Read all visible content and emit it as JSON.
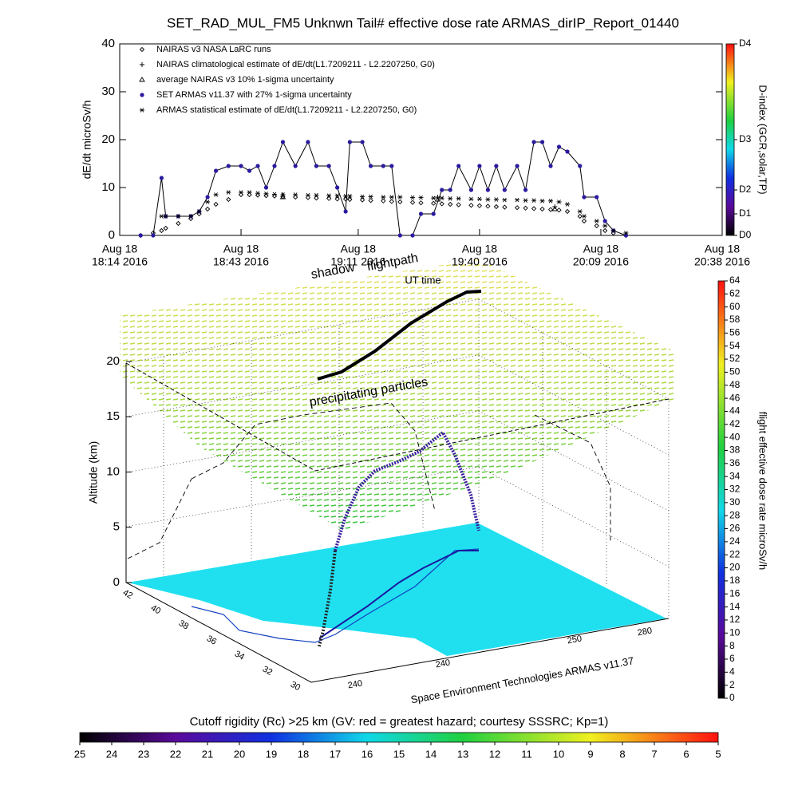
{
  "chart_data": [
    {
      "type": "line",
      "title": "SET_RAD_MUL_FM5 Unknwn Tail#  effective dose rate ARMAS_dirIP_Report_01440",
      "ylabel": "dE/dt microSv/h",
      "xlabel": "UT time",
      "x": [
        "2016-08-18 18:19",
        "2016-08-18 18:22",
        "2016-08-18 18:24",
        "2016-08-18 18:25",
        "2016-08-18 18:28",
        "2016-08-18 18:31",
        "2016-08-18 18:33",
        "2016-08-18 18:35",
        "2016-08-18 18:37",
        "2016-08-18 18:40",
        "2016-08-18 18:43",
        "2016-08-18 18:45",
        "2016-08-18 18:47",
        "2016-08-18 18:49",
        "2016-08-18 18:51",
        "2016-08-18 18:53",
        "2016-08-18 18:56",
        "2016-08-18 18:59",
        "2016-08-18 19:01",
        "2016-08-18 19:04",
        "2016-08-18 19:06",
        "2016-08-18 19:08",
        "2016-08-18 19:09",
        "2016-08-18 19:12",
        "2016-08-18 19:14",
        "2016-08-18 19:17",
        "2016-08-18 19:19",
        "2016-08-18 19:21",
        "2016-08-18 19:24",
        "2016-08-18 19:26",
        "2016-08-18 19:29",
        "2016-08-18 19:31",
        "2016-08-18 19:33",
        "2016-08-18 19:35",
        "2016-08-18 19:38",
        "2016-08-18 19:40",
        "2016-08-18 19:42",
        "2016-08-18 19:44",
        "2016-08-18 19:46",
        "2016-08-18 19:49",
        "2016-08-18 19:51",
        "2016-08-18 19:53",
        "2016-08-18 19:55",
        "2016-08-18 19:57",
        "2016-08-18 19:59",
        "2016-08-18 20:01",
        "2016-08-18 20:04",
        "2016-08-18 20:05",
        "2016-08-18 20:08",
        "2016-08-18 20:10",
        "2016-08-18 20:12",
        "2016-08-18 20:15"
      ],
      "xlim": [
        "2016-08-18 18:14",
        "2016-08-18 20:38"
      ],
      "xticks": [
        {
          "value": "2016-08-18 18:14",
          "label": [
            "Aug 18",
            "18:14 2016"
          ]
        },
        {
          "value": "2016-08-18 18:43",
          "label": [
            "Aug 18",
            "18:43 2016"
          ]
        },
        {
          "value": "2016-08-18 19:11",
          "label": [
            "Aug 18",
            "19:11 2016"
          ]
        },
        {
          "value": "2016-08-18 19:40",
          "label": [
            "Aug 18",
            "19:40 2016"
          ]
        },
        {
          "value": "2016-08-18 20:09",
          "label": [
            "Aug 18",
            "20:09 2016"
          ]
        },
        {
          "value": "2016-08-18 20:38",
          "label": [
            "Aug 18",
            "20:38 2016"
          ]
        }
      ],
      "ylim": [
        0,
        40
      ],
      "yticks": [
        0,
        10,
        20,
        30,
        40
      ],
      "legend": "upper left",
      "series": [
        {
          "name": "NAIRAS v3 NASA LaRC runs",
          "marker": "diamond",
          "color": "#000000",
          "line": false,
          "values": [
            0,
            0.5,
            1,
            1.5,
            2.5,
            3.5,
            4.5,
            5.5,
            6.5,
            7.5,
            8.5,
            8.5,
            8.4,
            8.3,
            8.2,
            8.1,
            8,
            7.9,
            7.8,
            7.7,
            7.6,
            7.6,
            7.5,
            7.4,
            7.3,
            7.2,
            7.1,
            7,
            6.9,
            6.8,
            6.7,
            6.6,
            6.5,
            6.4,
            6.3,
            6.2,
            6.1,
            6,
            5.9,
            5.8,
            5.7,
            5.6,
            5.5,
            5.4,
            5.3,
            5,
            4,
            3,
            2,
            1,
            0.5,
            0
          ]
        },
        {
          "name": "NAIRAS climatological estimate of dE/dt(L1.7209211 - L2.2207250, G0)",
          "marker": "plus",
          "color": "#000000",
          "line": false,
          "x": [
            "2016-08-18 18:53",
            "2016-08-18 19:30",
            "2016-08-18 19:58"
          ],
          "values": [
            8.5,
            8,
            6
          ]
        },
        {
          "name": "average NAIRAS v3 10% 1-sigma uncertainty",
          "marker": "triangle",
          "color": "#000000",
          "line": false,
          "x": [
            "2016-08-18 18:53",
            "2016-08-18 19:30",
            "2016-08-18 19:58"
          ],
          "values": [
            8,
            7.5,
            5.5
          ]
        },
        {
          "name": "SET ARMAS v11.37 with 27% 1-sigma uncertainty",
          "marker": "circle",
          "color": "#2a1aa0",
          "line": true,
          "values": [
            0,
            0,
            12,
            4,
            4,
            4,
            5,
            8,
            13.5,
            14.5,
            14.5,
            13.5,
            14.5,
            10,
            14.5,
            19.5,
            14.5,
            19.5,
            14.5,
            14.5,
            10,
            5,
            19.5,
            19.5,
            14.5,
            14.5,
            14.5,
            0,
            0,
            4.5,
            4.5,
            9.5,
            9.5,
            14.5,
            9.5,
            14.5,
            9.5,
            14.5,
            9.5,
            14.5,
            9.5,
            19.5,
            19.5,
            14.5,
            18.5,
            17.5,
            14.5,
            8,
            8,
            3,
            1,
            0
          ]
        },
        {
          "name": "ARMAS statistical estimate of dE/dt(L1.7209211 - L2.2207250, G0)",
          "marker": "asterisk",
          "color": "#000000",
          "line": false,
          "values": [
            null,
            null,
            4,
            4,
            4,
            4,
            5,
            7,
            8.5,
            9,
            9,
            9,
            8.8,
            8.7,
            8.6,
            8.5,
            8.5,
            8.4,
            8.4,
            8.3,
            8.3,
            8.2,
            8.2,
            8.1,
            8.1,
            8,
            8,
            8,
            7.9,
            7.9,
            7.8,
            7.8,
            7.7,
            7.7,
            7.6,
            7.6,
            7.5,
            7.5,
            7.4,
            7.4,
            7.3,
            7.3,
            7.2,
            7.2,
            7,
            6.5,
            5,
            4,
            3,
            2,
            1,
            0.5
          ]
        }
      ]
    },
    {
      "type": "colorbar",
      "orientation": "vertical",
      "label": "D-index (GCR,solar,TP)",
      "lim": [
        0,
        40
      ],
      "ticks": [
        {
          "value": 0,
          "label": "D0"
        },
        {
          "value": 4.5,
          "label": "D1"
        },
        {
          "value": 9.5,
          "label": "D2"
        },
        {
          "value": 20,
          "label": "D3"
        },
        {
          "value": 40,
          "label": "D4"
        }
      ]
    },
    {
      "type": "3d-flightpath",
      "annotations": [
        "shadow",
        "flightpath",
        "precipitating particles"
      ],
      "zlabel": "Altitude (km)",
      "zlim": [
        0,
        20
      ],
      "zticks": [
        0,
        5,
        10,
        15,
        20
      ],
      "latticks": [
        42,
        40,
        38,
        36,
        34,
        32,
        30
      ],
      "lonticks": [
        240,
        240,
        250,
        280
      ],
      "credit": "Space Environment Technologies ARMAS v11.37"
    },
    {
      "type": "colorbar",
      "orientation": "vertical",
      "label": "flight effective dose rate microSv/h",
      "lim": [
        0,
        64
      ],
      "ticks": [
        0,
        2,
        4,
        6,
        8,
        10,
        12,
        14,
        16,
        18,
        20,
        22,
        24,
        26,
        28,
        30,
        32,
        34,
        36,
        38,
        40,
        42,
        44,
        46,
        48,
        50,
        52,
        54,
        56,
        58,
        60,
        62,
        64
      ]
    },
    {
      "type": "colorbar",
      "orientation": "horizontal",
      "label": "Cutoff rigidity (Rc) >25 km (GV: red = greatest hazard; courtesy SSSRC; Kp=1)",
      "lim": [
        25,
        5
      ],
      "ticks": [
        25,
        24,
        23,
        22,
        21,
        20,
        19,
        18,
        17,
        16,
        15,
        14,
        13,
        12,
        11,
        10,
        9,
        8,
        7,
        6,
        5
      ]
    }
  ]
}
